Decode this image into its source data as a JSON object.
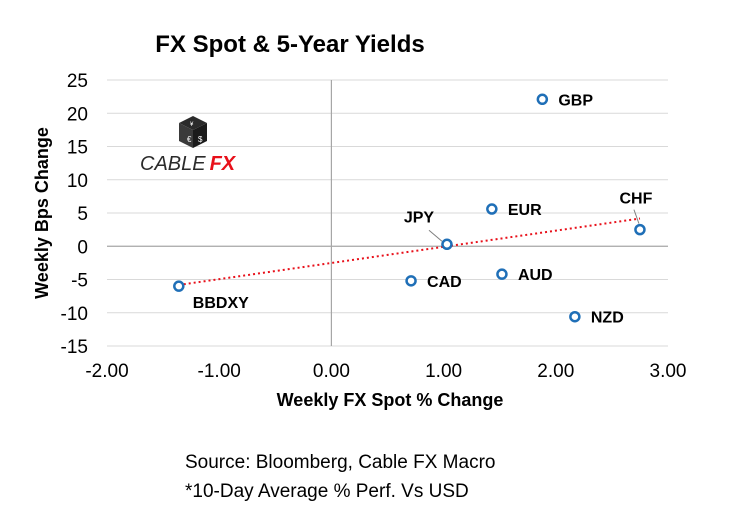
{
  "chart_data": {
    "type": "scatter",
    "title": "FX Spot & 5-Year Yields",
    "xlabel": "Weekly FX Spot % Change",
    "ylabel": "Weekly Bps Change",
    "xlim": [
      -2.0,
      3.0
    ],
    "ylim": [
      -15,
      25
    ],
    "xticks": [
      -2,
      -1,
      0,
      1,
      2,
      3
    ],
    "xtick_labels": [
      "-2.00",
      "-1.00",
      "0.00",
      "1.00",
      "2.00",
      "3.00"
    ],
    "yticks": [
      25,
      20,
      15,
      10,
      5,
      0,
      -5,
      -10,
      -15
    ],
    "ytick_labels": [
      "25",
      "20",
      "15",
      "10",
      "5",
      "0",
      "-5",
      "-10",
      "-15"
    ],
    "grid": "horizontal",
    "trendline": {
      "style": "dotted",
      "color": "#e8101a"
    },
    "marker_color": "#1f6fb7",
    "points": [
      {
        "label": "GBP",
        "x": 1.88,
        "y": 22.1
      },
      {
        "label": "CHF",
        "x": 2.75,
        "y": 2.5
      },
      {
        "label": "EUR",
        "x": 1.43,
        "y": 5.6
      },
      {
        "label": "JPY",
        "x": 1.03,
        "y": 0.3
      },
      {
        "label": "AUD",
        "x": 1.52,
        "y": -4.2
      },
      {
        "label": "CAD",
        "x": 0.71,
        "y": -5.2
      },
      {
        "label": "NZD",
        "x": 2.17,
        "y": -10.6
      },
      {
        "label": "BBDXY",
        "x": -1.36,
        "y": -6.0
      }
    ]
  },
  "logo": {
    "text_part1": "CABLE",
    "text_part2": "FX",
    "accent_color": "#e8101a"
  },
  "notes": {
    "source": "Source: Bloomberg, Cable FX Macro",
    "footnote": "*10-Day Average % Perf. Vs USD"
  }
}
